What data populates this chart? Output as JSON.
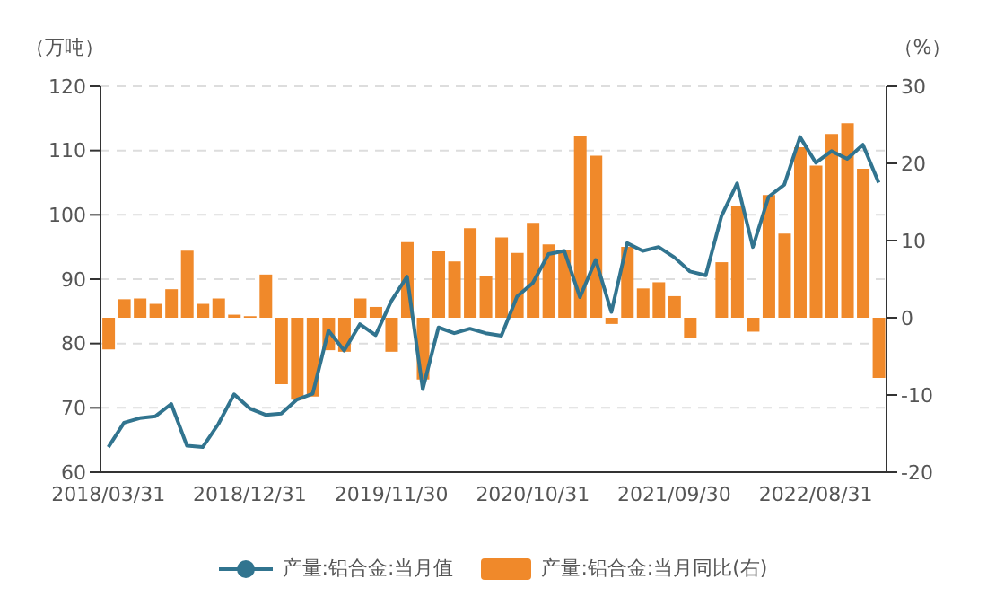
{
  "chart_data": {
    "type": "line",
    "ylabel": "（万吨）",
    "y2label": "（%）",
    "categories": [
      "2018/03/31",
      null,
      null,
      null,
      null,
      null,
      null,
      null,
      null,
      "2018/12/31",
      null,
      null,
      null,
      null,
      null,
      null,
      null,
      null,
      "2019/11/30",
      null,
      null,
      null,
      null,
      null,
      null,
      null,
      null,
      "2020/10/31",
      null,
      null,
      null,
      null,
      null,
      null,
      null,
      null,
      "2021/09/30",
      null,
      null,
      null,
      null,
      null,
      null,
      null,
      null,
      "2022/08/31",
      null,
      null,
      null,
      null
    ],
    "series": [
      {
        "name": "产量:铝合金:当月值",
        "color": "#31748f",
        "values": [
          63.9,
          67.7,
          68.4,
          68.7,
          70.6,
          64.1,
          63.9,
          67.5,
          72.1,
          69.9,
          68.9,
          69.1,
          71.3,
          72.2,
          82.0,
          78.9,
          83.0,
          81.3,
          86.6,
          90.4,
          72.9,
          82.5,
          81.6,
          82.3,
          81.6,
          81.2,
          87.3,
          89.4,
          93.9,
          94.4,
          87.2,
          93.0,
          84.9,
          95.6,
          94.4,
          95.0,
          93.4,
          91.2,
          90.6,
          99.8,
          104.9,
          95.0,
          102.8,
          104.7,
          112.1,
          108.1,
          109.9,
          108.7,
          110.9,
          105.0
        ]
      },
      {
        "name": "产量:铝合金:当月同比(右)",
        "type": "bar",
        "axis": "y2",
        "color": "#f0892a",
        "values": [
          -4.1,
          2.4,
          2.5,
          1.8,
          3.7,
          8.7,
          1.8,
          2.5,
          0.4,
          0.2,
          5.6,
          -8.6,
          -10.6,
          -10.2,
          -4.2,
          -4.4,
          2.5,
          1.4,
          -4.4,
          9.8,
          -8.0,
          8.6,
          7.3,
          11.6,
          5.4,
          10.4,
          8.4,
          12.3,
          9.5,
          8.8,
          23.6,
          21.0,
          -0.8,
          9.2,
          3.8,
          4.6,
          2.8,
          -2.6,
          0,
          7.2,
          14.5,
          -1.8,
          15.9,
          10.9,
          22.1,
          19.7,
          23.8,
          25.2,
          19.3,
          -7.8
        ]
      }
    ],
    "ylim": [
      60,
      120
    ],
    "yticks": [
      60,
      70,
      80,
      90,
      100,
      110,
      120
    ],
    "y2lim": [
      -20,
      30
    ],
    "y2ticks": [
      -20,
      -10,
      0,
      10,
      20,
      30
    ],
    "grid": "y",
    "legend": "bottom",
    "marker": "none",
    "line_style": "solid"
  }
}
